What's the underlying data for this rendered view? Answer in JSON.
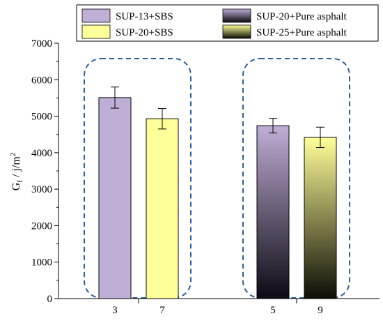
{
  "chart_data": {
    "type": "bar",
    "ylabel": "G",
    "ylabel_sub": "f",
    "ylabel_unit": " / j/m",
    "ylabel_sup": "2",
    "ylim": [
      0,
      7000
    ],
    "yticks": [
      0,
      1000,
      2000,
      3000,
      4000,
      5000,
      6000,
      7000
    ],
    "grid": false,
    "legend_position": "top",
    "categories": [
      "3",
      "7",
      "5",
      "9"
    ],
    "series": [
      {
        "name": "SUP-13+SBS",
        "category": "3",
        "value": 5510,
        "error": 290,
        "color": "#bfaed6",
        "fill": "solid"
      },
      {
        "name": "SUP-20+SBS",
        "category": "7",
        "value": 4930,
        "error": 280,
        "color": "#ffff99",
        "fill": "solid"
      },
      {
        "name": "SUP-20+Pure asphalt",
        "category": "5",
        "value": 4740,
        "error": 200,
        "color": "#bfaed6",
        "fill": "gradient-dark"
      },
      {
        "name": "SUP-25+Pure asphalt",
        "category": "9",
        "value": 4420,
        "error": 280,
        "color": "#ffff99",
        "fill": "gradient-dark"
      }
    ],
    "groups": [
      {
        "categories": [
          "3",
          "7"
        ],
        "outline": "dashed",
        "outline_color": "#2e5d99"
      },
      {
        "categories": [
          "5",
          "9"
        ],
        "outline": "dashed",
        "outline_color": "#2e5d99"
      }
    ]
  }
}
